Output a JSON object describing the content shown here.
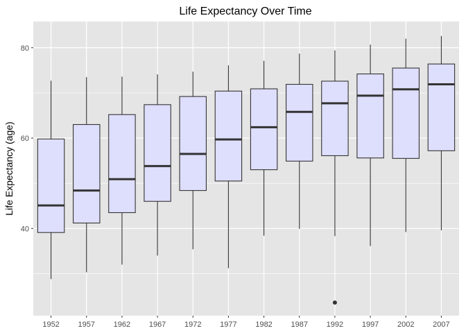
{
  "chart_data": {
    "type": "boxplot",
    "title": "Life Expectancy Over Time",
    "xlabel": "",
    "ylabel": "Life Expectancy (age)",
    "ylim": [
      20.7,
      85.8
    ],
    "yticks": [
      40,
      60,
      80
    ],
    "grid": true,
    "legend": "none",
    "colors": {
      "panel_background": "#e5e5e5",
      "grid": "#ffffff",
      "box_fill": "#dedefd",
      "box_stroke": "#333333",
      "median": "#333333"
    },
    "categories": [
      "1952",
      "1957",
      "1962",
      "1967",
      "1972",
      "1977",
      "1982",
      "1987",
      "1992",
      "1997",
      "2002",
      "2007"
    ],
    "boxes": [
      {
        "whisker_low": 28.8,
        "q1": 39.1,
        "median": 45.1,
        "q3": 59.8,
        "whisker_high": 72.7,
        "outliers": []
      },
      {
        "whisker_low": 30.3,
        "q1": 41.2,
        "median": 48.4,
        "q3": 63.0,
        "whisker_high": 73.5,
        "outliers": []
      },
      {
        "whisker_low": 32.0,
        "q1": 43.5,
        "median": 50.9,
        "q3": 65.2,
        "whisker_high": 73.6,
        "outliers": []
      },
      {
        "whisker_low": 34.0,
        "q1": 46.0,
        "median": 53.8,
        "q3": 67.4,
        "whisker_high": 74.1,
        "outliers": []
      },
      {
        "whisker_low": 35.4,
        "q1": 48.4,
        "median": 56.5,
        "q3": 69.2,
        "whisker_high": 74.7,
        "outliers": []
      },
      {
        "whisker_low": 31.2,
        "q1": 50.5,
        "median": 59.7,
        "q3": 70.4,
        "whisker_high": 76.1,
        "outliers": []
      },
      {
        "whisker_low": 38.4,
        "q1": 53.0,
        "median": 62.4,
        "q3": 70.9,
        "whisker_high": 77.1,
        "outliers": []
      },
      {
        "whisker_low": 39.9,
        "q1": 54.9,
        "median": 65.8,
        "q3": 71.9,
        "whisker_high": 78.7,
        "outliers": []
      },
      {
        "whisker_low": 38.3,
        "q1": 56.1,
        "median": 67.7,
        "q3": 72.6,
        "whisker_high": 79.4,
        "outliers": [
          23.6
        ]
      },
      {
        "whisker_low": 36.1,
        "q1": 55.6,
        "median": 69.4,
        "q3": 74.2,
        "whisker_high": 80.7,
        "outliers": []
      },
      {
        "whisker_low": 39.2,
        "q1": 55.5,
        "median": 70.8,
        "q3": 75.5,
        "whisker_high": 82.0,
        "outliers": []
      },
      {
        "whisker_low": 39.6,
        "q1": 57.2,
        "median": 71.9,
        "q3": 76.4,
        "whisker_high": 82.6,
        "outliers": []
      }
    ]
  }
}
